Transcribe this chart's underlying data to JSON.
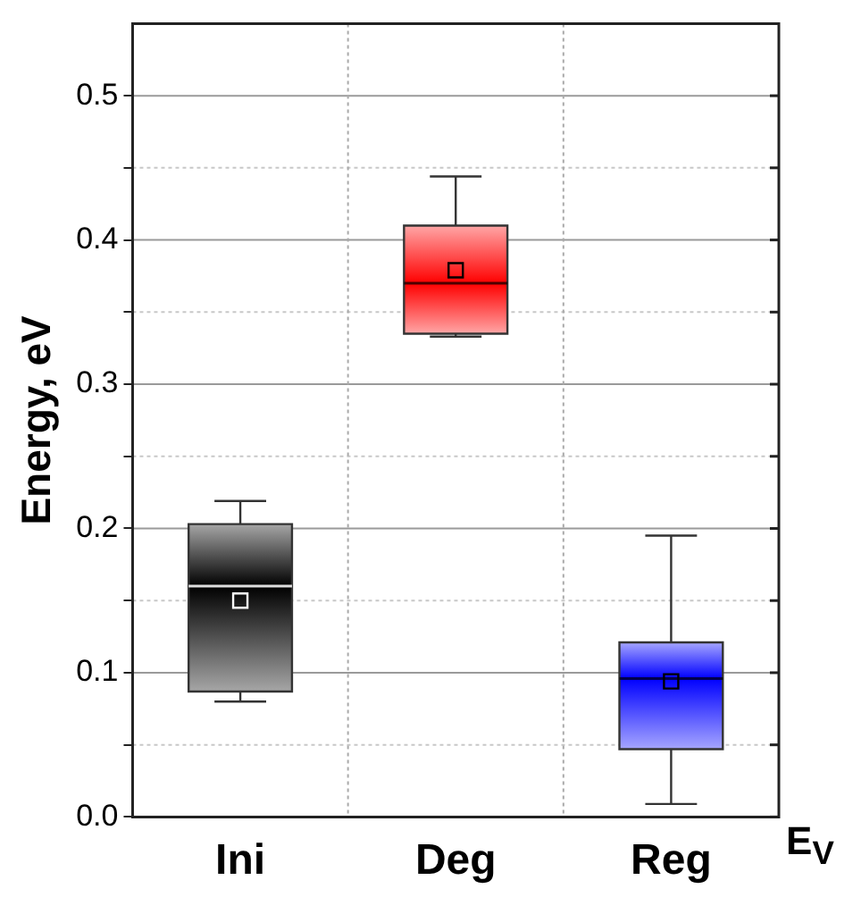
{
  "chart_data": {
    "type": "box",
    "ylabel": "Energy, eV",
    "categories": [
      "Ini",
      "Deg",
      "Reg"
    ],
    "boxes": [
      {
        "low": 0.08,
        "q1": 0.087,
        "median": 0.16,
        "q3": 0.203,
        "high": 0.219,
        "mean": 0.15
      },
      {
        "low": 0.333,
        "q1": 0.335,
        "median": 0.37,
        "q3": 0.41,
        "high": 0.444,
        "mean": 0.379
      },
      {
        "low": 0.009,
        "q1": 0.047,
        "median": 0.096,
        "q3": 0.121,
        "high": 0.195,
        "mean": 0.094
      }
    ],
    "colors": [
      "#000000",
      "#ff0000",
      "#0000ff"
    ],
    "ylim": [
      0,
      0.55
    ],
    "yticks": [
      {
        "value": 0,
        "label": "0.0"
      },
      {
        "value": 0.05,
        "label": null
      },
      0.1,
      {
        "value": 0.15,
        "label": null
      },
      0.2,
      {
        "value": 0.25,
        "label": null
      },
      0.3,
      {
        "value": 0.35,
        "label": null
      },
      0.4,
      {
        "value": 0.45,
        "label": null
      },
      0.5
    ],
    "grid": true,
    "marker": "square",
    "legend": false,
    "annotations": [
      "E$_{V}$"
    ]
  }
}
